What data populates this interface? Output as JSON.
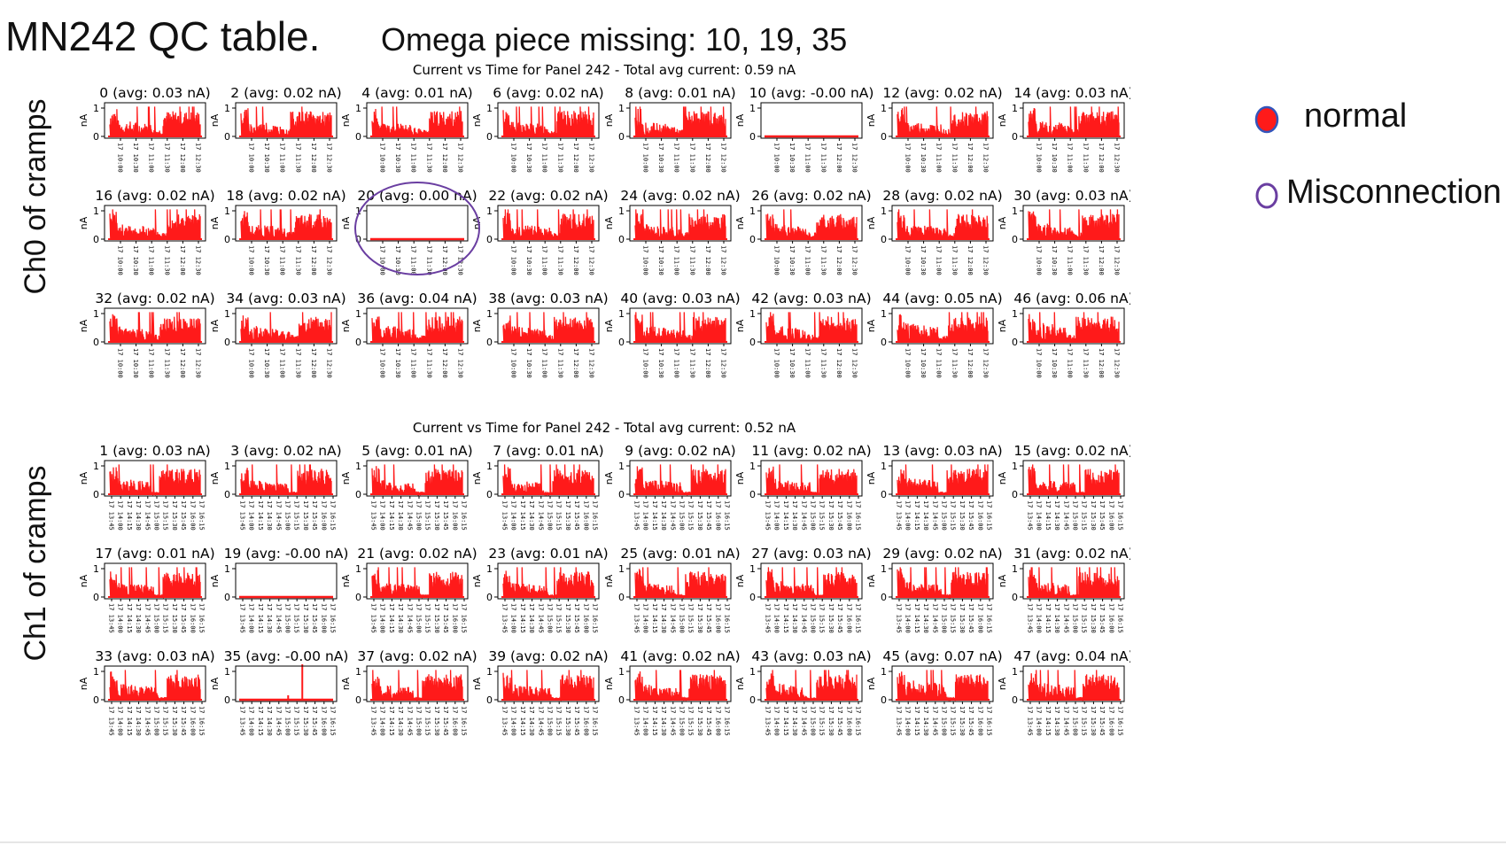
{
  "slide": {
    "title": "MN242 QC table.",
    "subtitle": "Omega piece missing: 10, 19, 35"
  },
  "row_labels": {
    "ch0": "Ch0 of cramps",
    "ch1": "Ch1 of cramps"
  },
  "legend": {
    "normal": {
      "label": "normal",
      "fill": "#ff1a1a",
      "stroke": "#3355bb"
    },
    "misconnection": {
      "label": "Misconnection",
      "fill": "#ffffff",
      "stroke": "#6a3ea1"
    }
  },
  "colors": {
    "trace": "#ff1a1a",
    "highlight_circle": "#6a3ea1"
  },
  "chart_data": [
    {
      "type": "line",
      "title": "Current vs Time for Panel 242 - Total avg current: 0.59 nA",
      "ylabel": "nA",
      "ylim": [
        0,
        1
      ],
      "yticks": [
        "0",
        "1"
      ],
      "xticks": [
        "17 10:00",
        "17 10:30",
        "17 11:00",
        "17 11:30",
        "17 12:00",
        "17 12:30"
      ],
      "highlighted_panel": "20",
      "panels": [
        {
          "id": "0",
          "title": "0 (avg: 0.03 nA)",
          "avg": 0.03,
          "flat": false
        },
        {
          "id": "2",
          "title": "2 (avg: 0.02 nA)",
          "avg": 0.02,
          "flat": false
        },
        {
          "id": "4",
          "title": "4 (avg: 0.01 nA)",
          "avg": 0.01,
          "flat": false
        },
        {
          "id": "6",
          "title": "6 (avg: 0.02 nA)",
          "avg": 0.02,
          "flat": false
        },
        {
          "id": "8",
          "title": "8 (avg: 0.01 nA)",
          "avg": 0.01,
          "flat": false
        },
        {
          "id": "10",
          "title": "10 (avg: -0.00 nA)",
          "avg": -0.0,
          "flat": true
        },
        {
          "id": "12",
          "title": "12 (avg: 0.02 nA)",
          "avg": 0.02,
          "flat": false
        },
        {
          "id": "14",
          "title": "14 (avg: 0.03 nA)",
          "avg": 0.03,
          "flat": false
        },
        {
          "id": "16",
          "title": "16 (avg: 0.02 nA)",
          "avg": 0.02,
          "flat": false
        },
        {
          "id": "18",
          "title": "18 (avg: 0.02 nA)",
          "avg": 0.02,
          "flat": false
        },
        {
          "id": "20",
          "title": "20 (avg: 0.00 nA)",
          "avg": 0.0,
          "flat": true
        },
        {
          "id": "22",
          "title": "22 (avg: 0.02 nA)",
          "avg": 0.02,
          "flat": false
        },
        {
          "id": "24",
          "title": "24 (avg: 0.02 nA)",
          "avg": 0.02,
          "flat": false
        },
        {
          "id": "26",
          "title": "26 (avg: 0.02 nA)",
          "avg": 0.02,
          "flat": false
        },
        {
          "id": "28",
          "title": "28 (avg: 0.02 nA)",
          "avg": 0.02,
          "flat": false
        },
        {
          "id": "30",
          "title": "30 (avg: 0.03 nA)",
          "avg": 0.03,
          "flat": false
        },
        {
          "id": "32",
          "title": "32 (avg: 0.02 nA)",
          "avg": 0.02,
          "flat": false
        },
        {
          "id": "34",
          "title": "34 (avg: 0.03 nA)",
          "avg": 0.03,
          "flat": false
        },
        {
          "id": "36",
          "title": "36 (avg: 0.04 nA)",
          "avg": 0.04,
          "flat": false
        },
        {
          "id": "38",
          "title": "38 (avg: 0.03 nA)",
          "avg": 0.03,
          "flat": false
        },
        {
          "id": "40",
          "title": "40 (avg: 0.03 nA)",
          "avg": 0.03,
          "flat": false
        },
        {
          "id": "42",
          "title": "42 (avg: 0.03 nA)",
          "avg": 0.03,
          "flat": false
        },
        {
          "id": "44",
          "title": "44 (avg: 0.05 nA)",
          "avg": 0.05,
          "flat": false
        },
        {
          "id": "46",
          "title": "46 (avg: 0.06 nA)",
          "avg": 0.06,
          "flat": false
        }
      ]
    },
    {
      "type": "line",
      "title": "Current vs Time for Panel 242 - Total avg current: 0.52 nA",
      "ylabel": "nA",
      "ylim": [
        0,
        1
      ],
      "yticks": [
        "0",
        "1"
      ],
      "xticks": [
        "17 13:45",
        "17 14:00",
        "17 14:15",
        "17 14:30",
        "17 14:45",
        "17 15:00",
        "17 15:15",
        "17 15:30",
        "17 15:45",
        "17 16:00",
        "17 16:15"
      ],
      "highlighted_panel": null,
      "panels": [
        {
          "id": "1",
          "title": "1 (avg: 0.03 nA)",
          "avg": 0.03,
          "flat": false
        },
        {
          "id": "3",
          "title": "3 (avg: 0.02 nA)",
          "avg": 0.02,
          "flat": false
        },
        {
          "id": "5",
          "title": "5 (avg: 0.01 nA)",
          "avg": 0.01,
          "flat": false
        },
        {
          "id": "7",
          "title": "7 (avg: 0.01 nA)",
          "avg": 0.01,
          "flat": false
        },
        {
          "id": "9",
          "title": "9 (avg: 0.02 nA)",
          "avg": 0.02,
          "flat": false
        },
        {
          "id": "11",
          "title": "11 (avg: 0.02 nA)",
          "avg": 0.02,
          "flat": false
        },
        {
          "id": "13",
          "title": "13 (avg: 0.03 nA)",
          "avg": 0.03,
          "flat": false
        },
        {
          "id": "15",
          "title": "15 (avg: 0.02 nA)",
          "avg": 0.02,
          "flat": false
        },
        {
          "id": "17",
          "title": "17 (avg: 0.01 nA)",
          "avg": 0.01,
          "flat": false
        },
        {
          "id": "19",
          "title": "19 (avg: -0.00 nA)",
          "avg": -0.0,
          "flat": true
        },
        {
          "id": "21",
          "title": "21 (avg: 0.02 nA)",
          "avg": 0.02,
          "flat": false
        },
        {
          "id": "23",
          "title": "23 (avg: 0.01 nA)",
          "avg": 0.01,
          "flat": false
        },
        {
          "id": "25",
          "title": "25 (avg: 0.01 nA)",
          "avg": 0.01,
          "flat": false
        },
        {
          "id": "27",
          "title": "27 (avg: 0.03 nA)",
          "avg": 0.03,
          "flat": false
        },
        {
          "id": "29",
          "title": "29 (avg: 0.02 nA)",
          "avg": 0.02,
          "flat": false
        },
        {
          "id": "31",
          "title": "31 (avg: 0.02 nA)",
          "avg": 0.02,
          "flat": false
        },
        {
          "id": "33",
          "title": "33 (avg: 0.03 nA)",
          "avg": 0.03,
          "flat": false
        },
        {
          "id": "35",
          "title": "35 (avg: -0.00 nA)",
          "avg": -0.0,
          "flat": true,
          "spike": true
        },
        {
          "id": "37",
          "title": "37 (avg: 0.02 nA)",
          "avg": 0.02,
          "flat": false
        },
        {
          "id": "39",
          "title": "39 (avg: 0.02 nA)",
          "avg": 0.02,
          "flat": false
        },
        {
          "id": "41",
          "title": "41 (avg: 0.02 nA)",
          "avg": 0.02,
          "flat": false
        },
        {
          "id": "43",
          "title": "43 (avg: 0.03 nA)",
          "avg": 0.03,
          "flat": false
        },
        {
          "id": "45",
          "title": "45 (avg: 0.07 nA)",
          "avg": 0.07,
          "flat": false
        },
        {
          "id": "47",
          "title": "47 (avg: 0.04 nA)",
          "avg": 0.04,
          "flat": false
        }
      ]
    }
  ]
}
